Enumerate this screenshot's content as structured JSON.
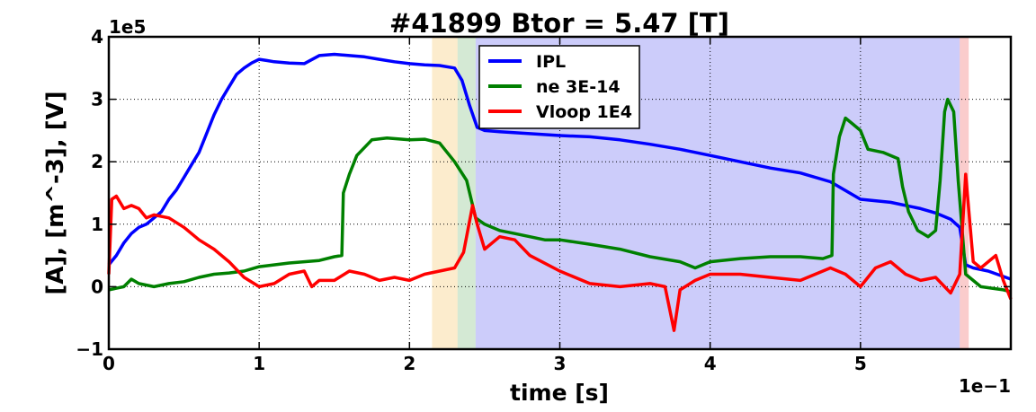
{
  "chart_data": {
    "type": "line",
    "title": "#41899 Btor = 5.47 [T]",
    "xlabel": "time [s]",
    "ylabel": "[A], [m^-3], [V]",
    "x_offset_label": "1e−1",
    "y_offset_label": "1e5",
    "xlim": [
      0,
      6
    ],
    "ylim": [
      -1,
      4
    ],
    "xticks": [
      "0",
      "1",
      "2",
      "3",
      "4",
      "5"
    ],
    "yticks": [
      "−1",
      "0",
      "1",
      "2",
      "3",
      "4"
    ],
    "grid": true,
    "legend_position": "top-center",
    "shaded_regions": [
      {
        "from": 2.15,
        "to": 2.32,
        "color": "#f5c05a"
      },
      {
        "from": 2.32,
        "to": 2.44,
        "color": "#6fb56f"
      },
      {
        "from": 2.44,
        "to": 5.66,
        "color": "#5555ee"
      },
      {
        "from": 5.66,
        "to": 5.72,
        "color": "#ee5555"
      }
    ],
    "series": [
      {
        "name": "IPL",
        "color": "#0000ff",
        "points": [
          [
            0,
            0.35
          ],
          [
            0.05,
            0.5
          ],
          [
            0.1,
            0.7
          ],
          [
            0.15,
            0.85
          ],
          [
            0.2,
            0.95
          ],
          [
            0.25,
            1.0
          ],
          [
            0.3,
            1.1
          ],
          [
            0.35,
            1.2
          ],
          [
            0.4,
            1.4
          ],
          [
            0.45,
            1.55
          ],
          [
            0.5,
            1.75
          ],
          [
            0.55,
            1.95
          ],
          [
            0.6,
            2.15
          ],
          [
            0.65,
            2.45
          ],
          [
            0.7,
            2.75
          ],
          [
            0.75,
            3.0
          ],
          [
            0.8,
            3.2
          ],
          [
            0.85,
            3.4
          ],
          [
            0.9,
            3.5
          ],
          [
            0.95,
            3.58
          ],
          [
            1.0,
            3.64
          ],
          [
            1.05,
            3.62
          ],
          [
            1.1,
            3.6
          ],
          [
            1.2,
            3.58
          ],
          [
            1.3,
            3.57
          ],
          [
            1.4,
            3.7
          ],
          [
            1.5,
            3.72
          ],
          [
            1.6,
            3.7
          ],
          [
            1.7,
            3.68
          ],
          [
            1.8,
            3.64
          ],
          [
            1.9,
            3.6
          ],
          [
            2.0,
            3.57
          ],
          [
            2.1,
            3.55
          ],
          [
            2.2,
            3.54
          ],
          [
            2.3,
            3.5
          ],
          [
            2.35,
            3.3
          ],
          [
            2.4,
            2.9
          ],
          [
            2.45,
            2.55
          ],
          [
            2.5,
            2.5
          ],
          [
            2.6,
            2.48
          ],
          [
            2.8,
            2.45
          ],
          [
            3.0,
            2.42
          ],
          [
            3.2,
            2.4
          ],
          [
            3.4,
            2.35
          ],
          [
            3.6,
            2.28
          ],
          [
            3.8,
            2.2
          ],
          [
            4.0,
            2.1
          ],
          [
            4.2,
            2.0
          ],
          [
            4.4,
            1.9
          ],
          [
            4.6,
            1.82
          ],
          [
            4.8,
            1.68
          ],
          [
            5.0,
            1.4
          ],
          [
            5.2,
            1.35
          ],
          [
            5.4,
            1.25
          ],
          [
            5.5,
            1.18
          ],
          [
            5.6,
            1.08
          ],
          [
            5.66,
            0.95
          ],
          [
            5.7,
            0.35
          ],
          [
            5.75,
            0.3
          ],
          [
            5.85,
            0.25
          ],
          [
            6.0,
            0.12
          ]
        ]
      },
      {
        "name": "ne 3E-14",
        "color": "#008000",
        "points": [
          [
            0,
            -0.05
          ],
          [
            0.1,
            0.0
          ],
          [
            0.15,
            0.12
          ],
          [
            0.2,
            0.05
          ],
          [
            0.3,
            0.0
          ],
          [
            0.4,
            0.05
          ],
          [
            0.5,
            0.08
          ],
          [
            0.6,
            0.15
          ],
          [
            0.7,
            0.2
          ],
          [
            0.8,
            0.22
          ],
          [
            0.9,
            0.25
          ],
          [
            1.0,
            0.32
          ],
          [
            1.2,
            0.38
          ],
          [
            1.4,
            0.42
          ],
          [
            1.5,
            0.48
          ],
          [
            1.55,
            0.5
          ],
          [
            1.56,
            1.5
          ],
          [
            1.6,
            1.8
          ],
          [
            1.65,
            2.1
          ],
          [
            1.75,
            2.35
          ],
          [
            1.85,
            2.38
          ],
          [
            2.0,
            2.35
          ],
          [
            2.1,
            2.36
          ],
          [
            2.2,
            2.3
          ],
          [
            2.3,
            2.0
          ],
          [
            2.38,
            1.7
          ],
          [
            2.44,
            1.1
          ],
          [
            2.5,
            1.0
          ],
          [
            2.6,
            0.9
          ],
          [
            2.7,
            0.85
          ],
          [
            2.8,
            0.8
          ],
          [
            2.9,
            0.75
          ],
          [
            3.0,
            0.75
          ],
          [
            3.2,
            0.68
          ],
          [
            3.4,
            0.6
          ],
          [
            3.6,
            0.48
          ],
          [
            3.8,
            0.4
          ],
          [
            3.9,
            0.3
          ],
          [
            4.0,
            0.4
          ],
          [
            4.2,
            0.45
          ],
          [
            4.4,
            0.48
          ],
          [
            4.6,
            0.48
          ],
          [
            4.75,
            0.45
          ],
          [
            4.81,
            0.5
          ],
          [
            4.82,
            1.8
          ],
          [
            4.86,
            2.4
          ],
          [
            4.9,
            2.7
          ],
          [
            4.95,
            2.6
          ],
          [
            5.0,
            2.5
          ],
          [
            5.05,
            2.2
          ],
          [
            5.15,
            2.15
          ],
          [
            5.25,
            2.05
          ],
          [
            5.28,
            1.6
          ],
          [
            5.32,
            1.2
          ],
          [
            5.38,
            0.9
          ],
          [
            5.45,
            0.8
          ],
          [
            5.5,
            0.9
          ],
          [
            5.53,
            1.7
          ],
          [
            5.56,
            2.8
          ],
          [
            5.58,
            3.0
          ],
          [
            5.62,
            2.8
          ],
          [
            5.65,
            1.7
          ],
          [
            5.7,
            0.2
          ],
          [
            5.8,
            0.0
          ],
          [
            5.95,
            -0.05
          ],
          [
            6.0,
            -0.08
          ]
        ]
      },
      {
        "name": "Vloop 1E4",
        "color": "#ff0000",
        "points": [
          [
            0,
            0.2
          ],
          [
            0.02,
            1.4
          ],
          [
            0.05,
            1.45
          ],
          [
            0.1,
            1.25
          ],
          [
            0.15,
            1.3
          ],
          [
            0.2,
            1.25
          ],
          [
            0.25,
            1.1
          ],
          [
            0.3,
            1.15
          ],
          [
            0.4,
            1.1
          ],
          [
            0.5,
            0.95
          ],
          [
            0.6,
            0.75
          ],
          [
            0.7,
            0.6
          ],
          [
            0.8,
            0.4
          ],
          [
            0.9,
            0.15
          ],
          [
            1.0,
            0.0
          ],
          [
            1.1,
            0.05
          ],
          [
            1.2,
            0.2
          ],
          [
            1.3,
            0.25
          ],
          [
            1.35,
            0.0
          ],
          [
            1.4,
            0.1
          ],
          [
            1.5,
            0.1
          ],
          [
            1.6,
            0.25
          ],
          [
            1.7,
            0.2
          ],
          [
            1.8,
            0.1
          ],
          [
            1.9,
            0.15
          ],
          [
            2.0,
            0.1
          ],
          [
            2.1,
            0.2
          ],
          [
            2.2,
            0.25
          ],
          [
            2.3,
            0.3
          ],
          [
            2.36,
            0.55
          ],
          [
            2.42,
            1.3
          ],
          [
            2.45,
            1.0
          ],
          [
            2.5,
            0.6
          ],
          [
            2.6,
            0.8
          ],
          [
            2.7,
            0.75
          ],
          [
            2.8,
            0.5
          ],
          [
            3.0,
            0.25
          ],
          [
            3.2,
            0.05
          ],
          [
            3.4,
            0.0
          ],
          [
            3.6,
            0.05
          ],
          [
            3.7,
            0.0
          ],
          [
            3.76,
            -0.7
          ],
          [
            3.8,
            -0.05
          ],
          [
            3.9,
            0.1
          ],
          [
            4.0,
            0.2
          ],
          [
            4.2,
            0.2
          ],
          [
            4.4,
            0.15
          ],
          [
            4.6,
            0.1
          ],
          [
            4.8,
            0.3
          ],
          [
            4.9,
            0.2
          ],
          [
            5.0,
            0.0
          ],
          [
            5.1,
            0.3
          ],
          [
            5.2,
            0.4
          ],
          [
            5.3,
            0.2
          ],
          [
            5.4,
            0.1
          ],
          [
            5.5,
            0.15
          ],
          [
            5.6,
            -0.1
          ],
          [
            5.66,
            0.2
          ],
          [
            5.7,
            1.8
          ],
          [
            5.75,
            0.4
          ],
          [
            5.8,
            0.3
          ],
          [
            5.9,
            0.5
          ],
          [
            5.95,
            0.1
          ],
          [
            6.0,
            -0.2
          ]
        ]
      }
    ]
  }
}
